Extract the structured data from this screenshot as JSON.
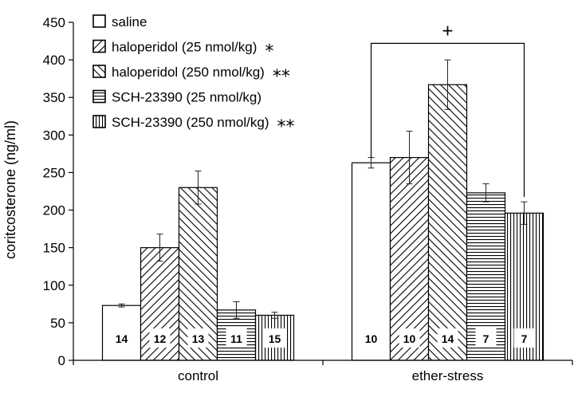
{
  "chart_data": {
    "type": "bar",
    "ylabel": "coritcosterone  (ng/ml)",
    "xlabel": "",
    "ylim": [
      0,
      450
    ],
    "yticks": [
      0,
      50,
      100,
      150,
      200,
      250,
      300,
      350,
      400,
      450
    ],
    "categories": [
      "control",
      "ether-stress"
    ],
    "series": [
      {
        "name": "saline",
        "pattern": "none",
        "significance": "",
        "values": [
          73,
          263
        ],
        "errors": [
          2,
          7
        ],
        "n": [
          "14",
          "10"
        ]
      },
      {
        "name": "haloperidol (25 nmol/kg)",
        "pattern": "diag-up",
        "significance": "*",
        "values": [
          150,
          270
        ],
        "errors": [
          18,
          35
        ],
        "n": [
          "12",
          "10"
        ]
      },
      {
        "name": "haloperidol (250 nmol/kg)",
        "pattern": "diag-down",
        "significance": "**",
        "values": [
          230,
          367
        ],
        "errors": [
          22,
          33
        ],
        "n": [
          "13",
          "14"
        ]
      },
      {
        "name": "SCH-23390 (25 nmol/kg)",
        "pattern": "horizontal",
        "significance": "",
        "values": [
          67,
          223
        ],
        "errors": [
          11,
          12
        ],
        "n": [
          "11",
          "7"
        ]
      },
      {
        "name": "SCH-23390 (250 nmol/kg)",
        "pattern": "vertical",
        "significance": "**",
        "values": [
          60,
          196
        ],
        "errors": [
          4,
          15
        ],
        "n": [
          "15",
          "7"
        ]
      }
    ],
    "annotations": [
      {
        "text": "+",
        "group": "ether-stress",
        "from_series": 0,
        "to_series": 4
      }
    ],
    "legend": "top-left",
    "grid": false
  }
}
